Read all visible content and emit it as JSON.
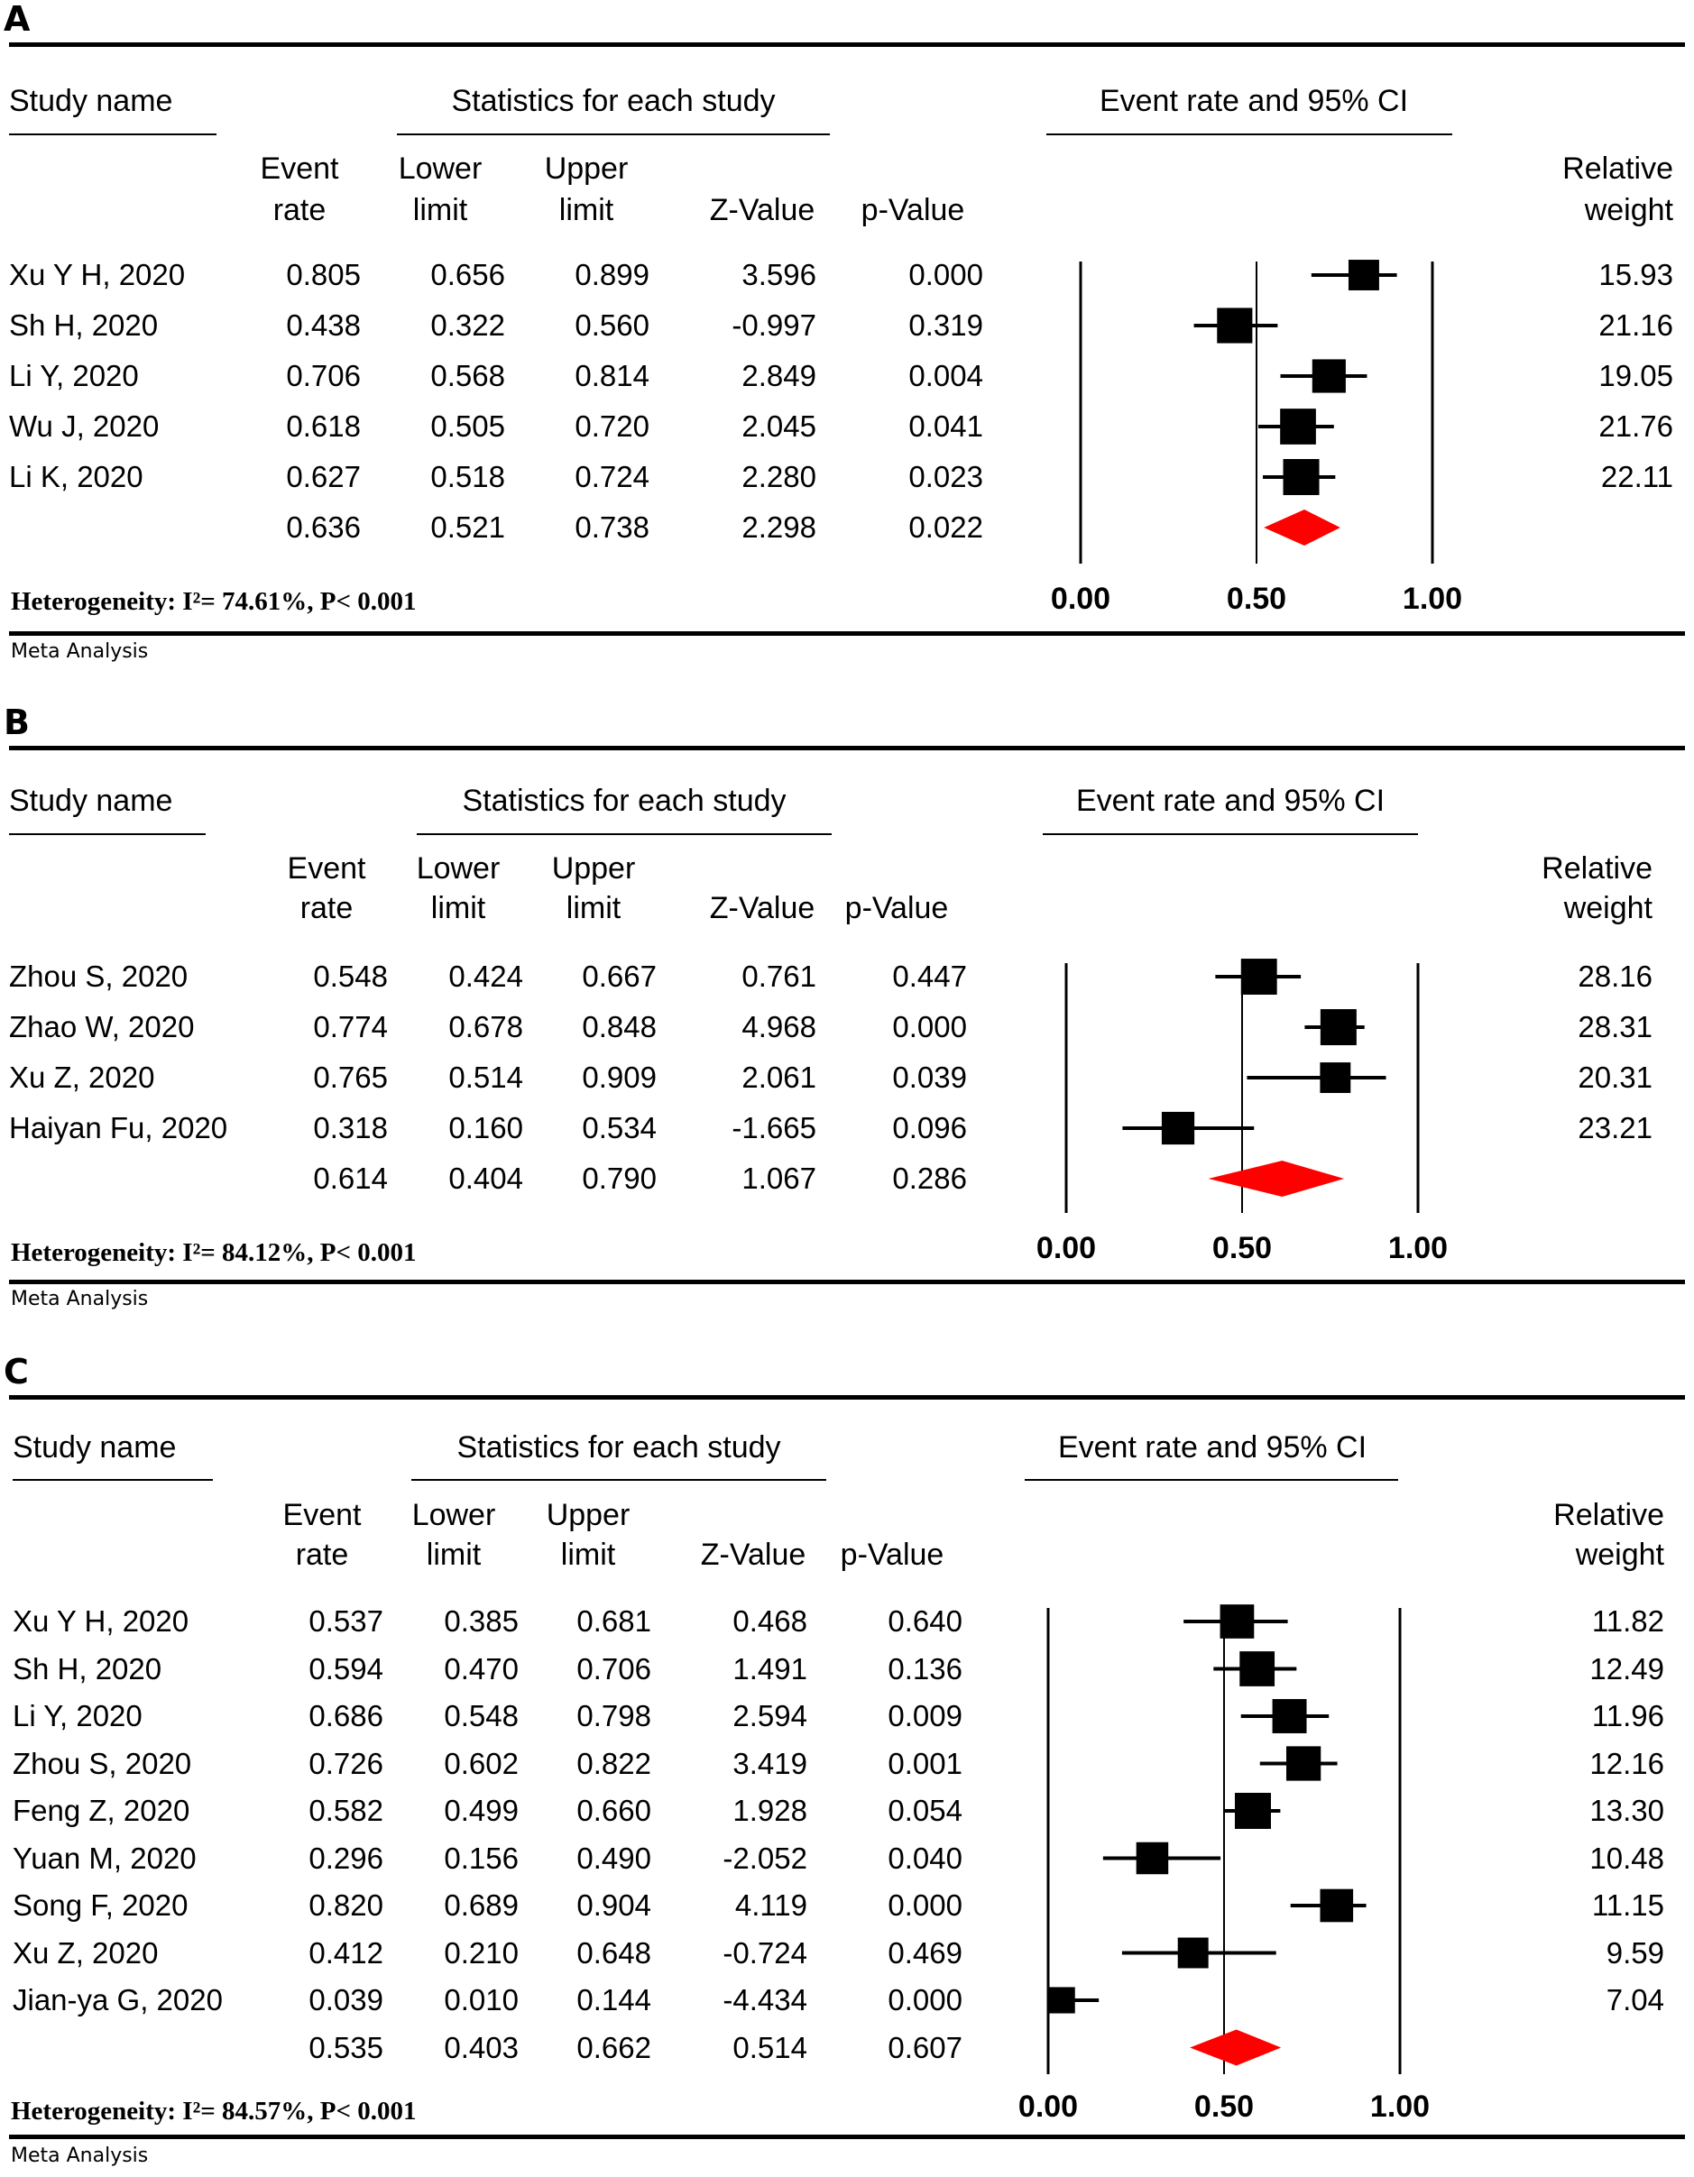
{
  "labels": {
    "study_name": "Study name",
    "stats_title": "Statistics for each study",
    "plot_title": "Event rate and 95% CI",
    "col_event_1": "Event",
    "col_event_2": "rate",
    "col_lower_1": "Lower",
    "col_lower_2": "limit",
    "col_upper_1": "Upper",
    "col_upper_2": "limit",
    "col_z": "Z-Value",
    "col_p": "p-Value",
    "col_weight_1": "Relative",
    "col_weight_2": "weight",
    "meta": "Meta Analysis"
  },
  "colors": {
    "diamond": "#ff0000",
    "marker": "#000000"
  },
  "chart_data": [
    {
      "type": "table",
      "panel": "A",
      "heterogeneity": "Heterogeneity: I²= 74.61%, P< 0.001",
      "x_ticks": [
        "0.00",
        "0.50",
        "1.00"
      ],
      "xlim": [
        0,
        1
      ],
      "studies": [
        {
          "name": "Xu Y H, 2020",
          "rate": "0.805",
          "lower": "0.656",
          "upper": "0.899",
          "z": "3.596",
          "p": "0.000",
          "weight": "15.93"
        },
        {
          "name": "Sh H, 2020",
          "rate": "0.438",
          "lower": "0.322",
          "upper": "0.560",
          "z": "-0.997",
          "p": "0.319",
          "weight": "21.16"
        },
        {
          "name": "Li Y, 2020",
          "rate": "0.706",
          "lower": "0.568",
          "upper": "0.814",
          "z": "2.849",
          "p": "0.004",
          "weight": "19.05"
        },
        {
          "name": "Wu J, 2020",
          "rate": "0.618",
          "lower": "0.505",
          "upper": "0.720",
          "z": "2.045",
          "p": "0.041",
          "weight": "21.76"
        },
        {
          "name": "Li K, 2020",
          "rate": "0.627",
          "lower": "0.518",
          "upper": "0.724",
          "z": "2.280",
          "p": "0.023",
          "weight": "22.11"
        }
      ],
      "pooled": {
        "rate": "0.636",
        "lower": "0.521",
        "upper": "0.738",
        "z": "2.298",
        "p": "0.022"
      }
    },
    {
      "type": "table",
      "panel": "B",
      "heterogeneity": "Heterogeneity: I²= 84.12%, P< 0.001",
      "x_ticks": [
        "0.00",
        "0.50",
        "1.00"
      ],
      "xlim": [
        0,
        1
      ],
      "studies": [
        {
          "name": "Zhou S, 2020",
          "rate": "0.548",
          "lower": "0.424",
          "upper": "0.667",
          "z": "0.761",
          "p": "0.447",
          "weight": "28.16"
        },
        {
          "name": "Zhao W, 2020",
          "rate": "0.774",
          "lower": "0.678",
          "upper": "0.848",
          "z": "4.968",
          "p": "0.000",
          "weight": "28.31"
        },
        {
          "name": "Xu Z, 2020",
          "rate": "0.765",
          "lower": "0.514",
          "upper": "0.909",
          "z": "2.061",
          "p": "0.039",
          "weight": "20.31"
        },
        {
          "name": "Haiyan Fu, 2020",
          "rate": "0.318",
          "lower": "0.160",
          "upper": "0.534",
          "z": "-1.665",
          "p": "0.096",
          "weight": "23.21"
        }
      ],
      "pooled": {
        "rate": "0.614",
        "lower": "0.404",
        "upper": "0.790",
        "z": "1.067",
        "p": "0.286"
      }
    },
    {
      "type": "table",
      "panel": "C",
      "heterogeneity": "Heterogeneity: I²= 84.57%, P< 0.001",
      "x_ticks": [
        "0.00",
        "0.50",
        "1.00"
      ],
      "xlim": [
        0,
        1
      ],
      "studies": [
        {
          "name": "Xu Y H, 2020",
          "rate": "0.537",
          "lower": "0.385",
          "upper": "0.681",
          "z": "0.468",
          "p": "0.640",
          "weight": "11.82"
        },
        {
          "name": "Sh H, 2020",
          "rate": "0.594",
          "lower": "0.470",
          "upper": "0.706",
          "z": "1.491",
          "p": "0.136",
          "weight": "12.49"
        },
        {
          "name": "Li Y, 2020",
          "rate": "0.686",
          "lower": "0.548",
          "upper": "0.798",
          "z": "2.594",
          "p": "0.009",
          "weight": "11.96"
        },
        {
          "name": "Zhou S, 2020",
          "rate": "0.726",
          "lower": "0.602",
          "upper": "0.822",
          "z": "3.419",
          "p": "0.001",
          "weight": "12.16"
        },
        {
          "name": "Feng Z, 2020",
          "rate": "0.582",
          "lower": "0.499",
          "upper": "0.660",
          "z": "1.928",
          "p": "0.054",
          "weight": "13.30"
        },
        {
          "name": "Yuan M, 2020",
          "rate": "0.296",
          "lower": "0.156",
          "upper": "0.490",
          "z": "-2.052",
          "p": "0.040",
          "weight": "10.48"
        },
        {
          "name": "Song F, 2020",
          "rate": "0.820",
          "lower": "0.689",
          "upper": "0.904",
          "z": "4.119",
          "p": "0.000",
          "weight": "11.15"
        },
        {
          "name": "Xu Z, 2020",
          "rate": "0.412",
          "lower": "0.210",
          "upper": "0.648",
          "z": "-0.724",
          "p": "0.469",
          "weight": "9.59"
        },
        {
          "name": "Jian-ya G, 2020",
          "rate": "0.039",
          "lower": "0.010",
          "upper": "0.144",
          "z": "-4.434",
          "p": "0.000",
          "weight": "7.04"
        }
      ],
      "pooled": {
        "rate": "0.535",
        "lower": "0.403",
        "upper": "0.662",
        "z": "0.514",
        "p": "0.607"
      }
    }
  ]
}
